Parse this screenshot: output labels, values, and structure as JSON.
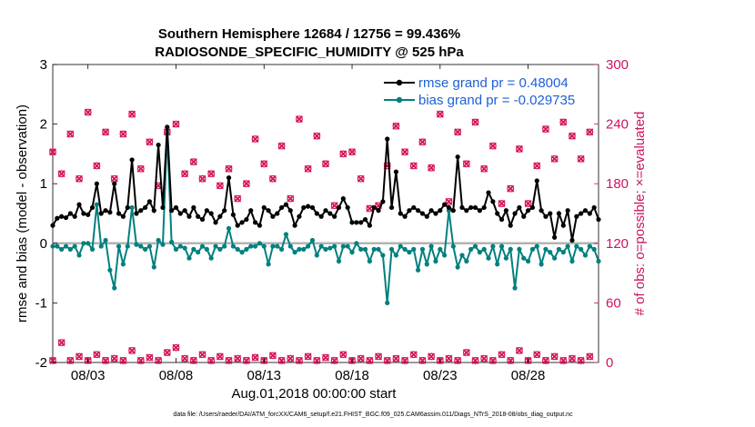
{
  "chart_data": {
    "type": "line",
    "title": "Southern Hemisphere 12684 / 12756 = 99.436%",
    "subtitle": "RADIOSONDE_SPECIFIC_HUMIDITY @ 525 hPa",
    "xlabel": "Aug.01,2018 00:00:00 start",
    "ylabel_left": "rmse and bias (model - observation)",
    "ylabel_right": "# of obs: o=possible; ×=evaluated",
    "xlim": [
      1.0,
      32.0
    ],
    "ylim_left": [
      -2,
      3
    ],
    "ylim_right": [
      0,
      300
    ],
    "x_ticks": [
      {
        "value": 3,
        "label": "08/03"
      },
      {
        "value": 8,
        "label": "08/08"
      },
      {
        "value": 13,
        "label": "08/13"
      },
      {
        "value": 18,
        "label": "08/18"
      },
      {
        "value": 23,
        "label": "08/23"
      },
      {
        "value": 28,
        "label": "08/28"
      }
    ],
    "y_ticks_left": [
      "-2",
      "-1",
      "0",
      "1",
      "2",
      "3"
    ],
    "y_ticks_right": [
      "0",
      "60",
      "120",
      "180",
      "240",
      "300"
    ],
    "zero_line": 0,
    "colors": {
      "rmse": "#000000",
      "bias": "#00807f",
      "obs": "#d4145a",
      "right_axis": "#cc1461",
      "legend_text": "#1f5fd6",
      "zero_line": "#b3b3b3"
    },
    "series": [
      {
        "name": "rmse grand pr = 0.48004",
        "axis": "left",
        "x": [
          1.0,
          1.25,
          1.5,
          1.75,
          2.0,
          2.25,
          2.5,
          2.75,
          3.0,
          3.25,
          3.5,
          3.75,
          4.0,
          4.25,
          4.5,
          4.75,
          5.0,
          5.25,
          5.5,
          5.75,
          6.0,
          6.25,
          6.5,
          6.75,
          7.0,
          7.25,
          7.5,
          7.75,
          8.0,
          8.25,
          8.5,
          8.75,
          9.0,
          9.25,
          9.5,
          9.75,
          10.0,
          10.25,
          10.5,
          10.75,
          11.0,
          11.25,
          11.5,
          11.75,
          12.0,
          12.25,
          12.5,
          12.75,
          13.0,
          13.25,
          13.5,
          13.75,
          14.0,
          14.25,
          14.5,
          14.75,
          15.0,
          15.25,
          15.5,
          15.75,
          16.0,
          16.25,
          16.5,
          16.75,
          17.0,
          17.25,
          17.5,
          17.75,
          18.0,
          18.25,
          18.5,
          18.75,
          19.0,
          19.25,
          19.5,
          19.75,
          20.0,
          20.25,
          20.5,
          20.75,
          21.0,
          21.25,
          21.5,
          21.75,
          22.0,
          22.25,
          22.5,
          22.75,
          23.0,
          23.25,
          23.5,
          23.75,
          24.0,
          24.25,
          24.5,
          24.75,
          25.0,
          25.25,
          25.5,
          25.75,
          26.0,
          26.25,
          26.5,
          26.75,
          27.0,
          27.25,
          27.5,
          27.75,
          28.0,
          28.25,
          28.5,
          28.75,
          29.0,
          29.25,
          29.5,
          29.75,
          30.0,
          30.25,
          30.5,
          30.75,
          31.0,
          31.25,
          31.5,
          31.75,
          32.0
        ],
        "values": [
          0.3,
          0.42,
          0.45,
          0.43,
          0.5,
          0.45,
          0.65,
          0.5,
          0.48,
          0.6,
          1.0,
          0.5,
          0.55,
          0.52,
          1.0,
          0.5,
          0.45,
          0.6,
          1.4,
          0.5,
          0.55,
          0.6,
          0.7,
          0.55,
          1.65,
          0.6,
          1.95,
          0.55,
          0.6,
          0.5,
          0.55,
          0.45,
          0.6,
          0.45,
          0.4,
          0.55,
          0.5,
          0.35,
          0.45,
          0.55,
          1.1,
          0.48,
          0.3,
          0.35,
          0.4,
          0.55,
          0.35,
          0.3,
          0.6,
          0.55,
          0.45,
          0.5,
          0.6,
          0.65,
          0.55,
          0.3,
          0.45,
          0.6,
          0.62,
          0.6,
          0.5,
          0.45,
          0.55,
          0.5,
          0.45,
          0.6,
          0.75,
          0.6,
          0.35,
          0.35,
          0.35,
          0.4,
          0.3,
          0.6,
          0.55,
          0.7,
          1.75,
          0.6,
          1.2,
          0.5,
          0.45,
          0.55,
          0.6,
          0.55,
          0.5,
          0.45,
          0.55,
          0.5,
          0.55,
          0.65,
          0.6,
          0.55,
          1.45,
          0.6,
          0.55,
          0.6,
          0.6,
          0.55,
          0.6,
          0.85,
          0.7,
          0.5,
          0.4,
          0.55,
          0.3,
          0.5,
          0.6,
          0.45,
          0.55,
          0.6,
          1.05,
          0.55,
          0.45,
          0.5,
          0.1,
          0.5,
          0.3,
          0.55,
          0.05,
          0.45,
          0.5,
          0.55,
          0.5,
          0.6,
          0.4
        ]
      },
      {
        "name": "bias grand pr = -0.029735",
        "axis": "left",
        "x": [
          1.0,
          1.25,
          1.5,
          1.75,
          2.0,
          2.25,
          2.5,
          2.75,
          3.0,
          3.25,
          3.5,
          3.75,
          4.0,
          4.25,
          4.5,
          4.75,
          5.0,
          5.25,
          5.5,
          5.75,
          6.0,
          6.25,
          6.5,
          6.75,
          7.0,
          7.25,
          7.5,
          7.75,
          8.0,
          8.25,
          8.5,
          8.75,
          9.0,
          9.25,
          9.5,
          9.75,
          10.0,
          10.25,
          10.5,
          10.75,
          11.0,
          11.25,
          11.5,
          11.75,
          12.0,
          12.25,
          12.5,
          12.75,
          13.0,
          13.25,
          13.5,
          13.75,
          14.0,
          14.25,
          14.5,
          14.75,
          15.0,
          15.25,
          15.5,
          15.75,
          16.0,
          16.25,
          16.5,
          16.75,
          17.0,
          17.25,
          17.5,
          17.75,
          18.0,
          18.25,
          18.5,
          18.75,
          19.0,
          19.25,
          19.5,
          19.75,
          20.0,
          20.25,
          20.5,
          20.75,
          21.0,
          21.25,
          21.5,
          21.75,
          22.0,
          22.25,
          22.5,
          22.75,
          23.0,
          23.25,
          23.5,
          23.75,
          24.0,
          24.25,
          24.5,
          24.75,
          25.0,
          25.25,
          25.5,
          25.75,
          26.0,
          26.25,
          26.5,
          26.75,
          27.0,
          27.25,
          27.5,
          27.75,
          28.0,
          28.25,
          28.5,
          28.75,
          29.0,
          29.25,
          29.5,
          29.75,
          30.0,
          30.25,
          30.5,
          30.75,
          31.0,
          31.25,
          31.5,
          31.75,
          32.0
        ],
        "values": [
          -0.05,
          -0.05,
          -0.1,
          -0.05,
          -0.1,
          -0.05,
          -0.2,
          0.0,
          0.0,
          -0.1,
          0.65,
          -0.05,
          0.05,
          -0.45,
          -0.75,
          -0.05,
          -0.35,
          -0.05,
          0.6,
          -0.02,
          -0.05,
          -0.1,
          -0.05,
          -0.4,
          0.05,
          -0.02,
          1.85,
          0.02,
          -0.1,
          -0.05,
          -0.08,
          -0.25,
          -0.1,
          -0.15,
          -0.05,
          -0.1,
          -0.25,
          -0.05,
          -0.1,
          -0.05,
          0.25,
          -0.05,
          -0.1,
          -0.15,
          -0.1,
          -0.05,
          -0.05,
          0.0,
          -0.05,
          -0.35,
          -0.05,
          -0.05,
          -0.1,
          0.15,
          -0.05,
          -0.15,
          -0.1,
          -0.1,
          -0.05,
          0.05,
          -0.2,
          -0.05,
          -0.1,
          -0.08,
          -0.05,
          -0.3,
          -0.05,
          -0.05,
          -0.15,
          0.0,
          -0.1,
          -0.1,
          -0.3,
          -0.1,
          -0.1,
          -0.2,
          -1.0,
          -0.1,
          -0.2,
          -0.05,
          -0.1,
          -0.15,
          -0.1,
          -0.45,
          -0.1,
          -0.35,
          -0.05,
          -0.3,
          -0.1,
          -0.2,
          0.55,
          -0.05,
          -0.4,
          -0.2,
          -0.3,
          -0.1,
          -0.05,
          -0.15,
          -0.1,
          -0.25,
          -0.05,
          -0.35,
          -0.05,
          -0.25,
          -0.1,
          -0.75,
          -0.1,
          -0.25,
          -0.3,
          -0.1,
          -0.05,
          -0.35,
          -0.1,
          -0.15,
          -0.25,
          -0.1,
          -0.15,
          -0.05,
          -0.3,
          -0.05,
          -0.1,
          -0.2,
          -0.05,
          -0.1,
          -0.3
        ]
      },
      {
        "name": "obs possible (o) / evaluated (×), upper cluster",
        "axis": "right",
        "marker": "o",
        "x": [
          1.0,
          1.5,
          2.0,
          2.5,
          3.0,
          3.5,
          4.0,
          4.5,
          5.0,
          5.5,
          6.0,
          6.5,
          7.0,
          7.5,
          8.0,
          8.5,
          9.0,
          9.5,
          10.0,
          10.5,
          11.0,
          11.5,
          12.0,
          12.5,
          13.0,
          13.5,
          14.0,
          14.5,
          15.0,
          15.5,
          16.0,
          16.5,
          17.0,
          17.5,
          18.0,
          18.5,
          19.0,
          19.5,
          20.0,
          20.5,
          21.0,
          21.5,
          22.0,
          22.5,
          23.0,
          23.5,
          24.0,
          24.5,
          25.0,
          25.5,
          26.0,
          26.5,
          27.0,
          27.5,
          28.0,
          28.5,
          29.0,
          29.5,
          30.0,
          30.5,
          31.0,
          31.5
        ],
        "values": [
          212,
          190,
          230,
          185,
          252,
          198,
          232,
          185,
          230,
          250,
          195,
          222,
          178,
          232,
          240,
          190,
          202,
          185,
          190,
          178,
          195,
          165,
          180,
          225,
          200,
          185,
          218,
          165,
          245,
          195,
          228,
          200,
          158,
          210,
          212,
          185,
          155,
          158,
          198,
          238,
          212,
          198,
          222,
          196,
          250,
          162,
          232,
          200,
          242,
          195,
          218,
          160,
          175,
          215,
          160,
          198,
          235,
          205,
          242,
          228,
          205,
          232
        ]
      }
    ],
    "obs_lower_cluster": {
      "marker": "o",
      "axis": "right",
      "x": [
        1.0,
        1.5,
        2.0,
        2.5,
        3.0,
        3.5,
        4.0,
        4.5,
        5.0,
        5.5,
        6.0,
        6.5,
        7.0,
        7.5,
        8.0,
        8.5,
        9.0,
        9.5,
        10.0,
        10.5,
        11.0,
        11.5,
        12.0,
        12.5,
        13.0,
        13.5,
        14.0,
        14.5,
        15.0,
        15.5,
        16.0,
        16.5,
        17.0,
        17.5,
        18.0,
        18.5,
        19.0,
        19.5,
        20.0,
        20.5,
        21.0,
        21.5,
        22.0,
        22.5,
        23.0,
        23.5,
        24.0,
        24.5,
        25.0,
        25.5,
        26.0,
        26.5,
        27.0,
        27.5,
        28.0,
        28.5,
        29.0,
        29.5,
        30.0,
        30.5,
        31.0,
        31.5
      ],
      "values": [
        2,
        20,
        2,
        6,
        2,
        8,
        2,
        4,
        2,
        12,
        2,
        5,
        2,
        10,
        15,
        4,
        2,
        8,
        2,
        6,
        2,
        4,
        2,
        5,
        2,
        7,
        2,
        4,
        2,
        6,
        2,
        5,
        2,
        8,
        2,
        4,
        2,
        6,
        2,
        4,
        2,
        8,
        2,
        6,
        2,
        4,
        2,
        10,
        2,
        4,
        2,
        8,
        2,
        12,
        2,
        8,
        2,
        6,
        2,
        4,
        2,
        6
      ]
    },
    "legend": {
      "placement": "top-right",
      "entries": [
        "rmse grand pr = 0.48004",
        "bias grand pr = -0.029735"
      ]
    },
    "footer": "data file: /Users/raeder/DAI/ATM_forcXX/CAM6_setup/f.e21.FHIST_BGC.f09_025.CAM6assim.011/Diags_NTrS_2018-08/obs_diag_output.nc"
  }
}
